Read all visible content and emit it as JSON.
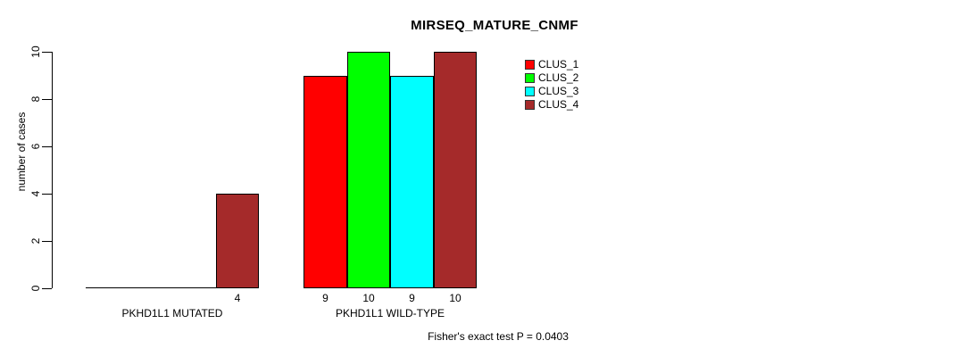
{
  "chart_data": {
    "type": "bar",
    "title": "MIRSEQ_MATURE_CNMF",
    "ylabel": "number of cases",
    "xlabel": "",
    "ylim": [
      0,
      10
    ],
    "yticks": [
      0,
      2,
      4,
      6,
      8,
      10
    ],
    "grid": false,
    "categories": [
      "PKHD1L1 MUTATED",
      "PKHD1L1 WILD-TYPE"
    ],
    "series": [
      {
        "name": "CLUS_1",
        "color": "#ff0000",
        "values": [
          0,
          9
        ]
      },
      {
        "name": "CLUS_2",
        "color": "#00ff00",
        "values": [
          0,
          10
        ]
      },
      {
        "name": "CLUS_3",
        "color": "#00ffff",
        "values": [
          0,
          9
        ]
      },
      {
        "name": "CLUS_4",
        "color": "#a52a2a",
        "values": [
          4,
          10
        ]
      }
    ],
    "bar_value_labels": [
      [
        null,
        null,
        null,
        "4"
      ],
      [
        "9",
        "10",
        "9",
        "10"
      ]
    ],
    "legend_position": "top-right",
    "legend_entries": [
      "CLUS_1",
      "CLUS_2",
      "CLUS_3",
      "CLUS_4"
    ],
    "annotation": "Fisher's exact test P = 0.0403",
    "axis_color": "#000000",
    "background_color": "#ffffff"
  }
}
